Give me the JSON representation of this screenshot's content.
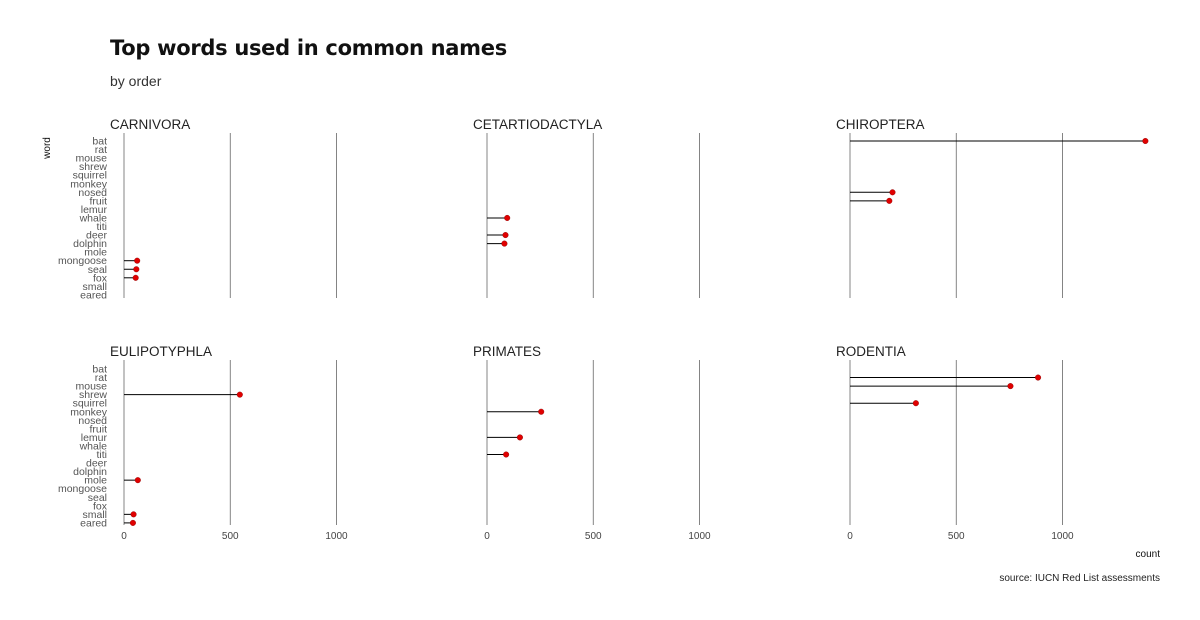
{
  "title": "Top words used in common names",
  "subtitle": "by order",
  "caption": "source: IUCN Red List assessments",
  "chart_data": {
    "type": "lollipop",
    "xlabel": "count",
    "ylabel": "word",
    "xlim": [
      0,
      1400
    ],
    "xticks": [
      0,
      500,
      1000
    ],
    "grid": "vertical major",
    "point_color": "#e00000",
    "stem_color": "#000000",
    "words": [
      "bat",
      "rat",
      "mouse",
      "shrew",
      "squirrel",
      "monkey",
      "nosed",
      "fruit",
      "lemur",
      "whale",
      "titi",
      "deer",
      "dolphin",
      "mole",
      "mongoose",
      "seal",
      "fox",
      "small",
      "eared"
    ],
    "facets": [
      {
        "name": "CARNIVORA",
        "values": {
          "mongoose": 62,
          "seal": 58,
          "fox": 55
        }
      },
      {
        "name": "CETARTIODACTYLA",
        "values": {
          "whale": 95,
          "deer": 87,
          "dolphin": 82
        }
      },
      {
        "name": "CHIROPTERA",
        "values": {
          "bat": 1390,
          "nosed": 200,
          "fruit": 185
        }
      },
      {
        "name": "EULIPOTYPHLA",
        "values": {
          "shrew": 545,
          "mole": 65,
          "small": 45,
          "eared": 42
        }
      },
      {
        "name": "PRIMATES",
        "values": {
          "monkey": 255,
          "lemur": 155,
          "titi": 90
        }
      },
      {
        "name": "RODENTIA",
        "values": {
          "rat": 885,
          "mouse": 755,
          "squirrel": 310
        }
      }
    ]
  }
}
